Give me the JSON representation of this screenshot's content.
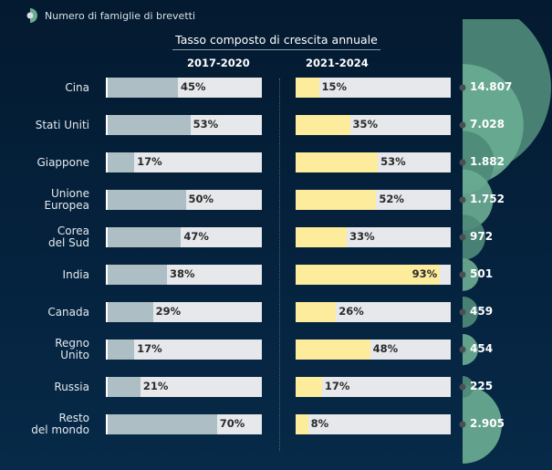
{
  "legend": {
    "label": "Numero di famiglie di brevetti"
  },
  "chart_data": {
    "type": "bar",
    "title": "Tasso composto di crescita annuale",
    "periods": [
      "2017-2020",
      "2021-2024"
    ],
    "categories": [
      "Cina",
      "Stati Uniti",
      "Giappone",
      "Unione Europea",
      "Corea del Sud",
      "India",
      "Canada",
      "Regno Unito",
      "Russia",
      "Resto del mondo"
    ],
    "category_lines": [
      [
        "Cina"
      ],
      [
        "Stati Uniti"
      ],
      [
        "Giappone"
      ],
      [
        "Unione",
        "Europea"
      ],
      [
        "Corea",
        "del Sud"
      ],
      [
        "India"
      ],
      [
        "Canada"
      ],
      [
        "Regno",
        "Unito"
      ],
      [
        "Russia"
      ],
      [
        "Resto",
        "del mondo"
      ]
    ],
    "series": [
      {
        "name": "2017-2020",
        "values": [
          45,
          53,
          17,
          50,
          47,
          38,
          29,
          17,
          21,
          70
        ],
        "color": "#adbec4"
      },
      {
        "name": "2021-2024",
        "values": [
          15,
          35,
          53,
          52,
          33,
          93,
          26,
          48,
          17,
          8
        ],
        "color": "#fcec9c"
      }
    ],
    "value_labels": [
      [
        "45%",
        "53%",
        "17%",
        "50%",
        "47%",
        "38%",
        "29%",
        "17%",
        "21%",
        "70%"
      ],
      [
        "15%",
        "35%",
        "53%",
        "52%",
        "33%",
        "93%",
        "26%",
        "48%",
        "17%",
        "8%"
      ]
    ],
    "xlim": [
      0,
      100
    ],
    "patent_families": [
      14807,
      7028,
      1882,
      1752,
      972,
      501,
      459,
      454,
      225,
      2905
    ],
    "patent_family_labels": [
      "14.807",
      "7.028",
      "1.882",
      "1.752",
      "972",
      "501",
      "459",
      "454",
      "225",
      "2.905"
    ],
    "bubble_colors": [
      "#4e8a78",
      "#6aab92"
    ]
  }
}
